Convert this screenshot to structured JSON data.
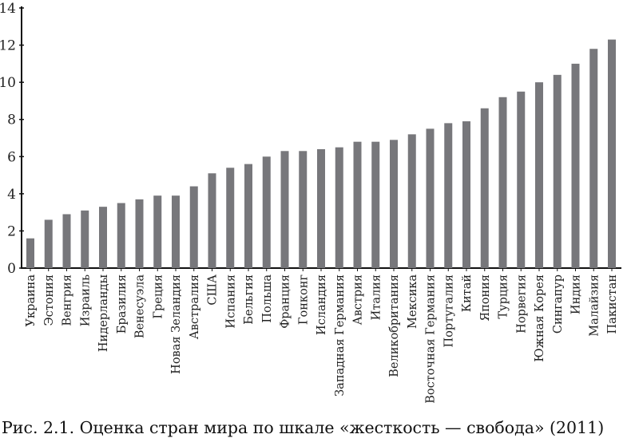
{
  "chart_data": {
    "type": "bar",
    "title": "Рис. 2.1. Оценка стран мира по шкале «жесткость — свобода» (2011)",
    "xlabel": "",
    "ylabel": "",
    "ylim": [
      0,
      14
    ],
    "yticks": [
      0,
      2,
      4,
      6,
      8,
      10,
      12,
      14
    ],
    "grid": false,
    "bar_color": "#77777b",
    "categories": [
      "Украина",
      "Эстония",
      "Венгрия",
      "Израиль",
      "Нидерланды",
      "Бразилия",
      "Венесуэла",
      "Греция",
      "Новая Зеландия",
      "Австралия",
      "США",
      "Испания",
      "Бельгия",
      "Польша",
      "Франция",
      "Гонконг",
      "Исландия",
      "Западная Германия",
      "Австрия",
      "Италия",
      "Великобритания",
      "Мексика",
      "Восточная Германия",
      "Португалия",
      "Китай",
      "Япония",
      "Турция",
      "Норвегия",
      "Южная Корея",
      "Сингапур",
      "Индия",
      "Малайзия",
      "Пакистан"
    ],
    "values": [
      1.6,
      2.6,
      2.9,
      3.1,
      3.3,
      3.5,
      3.7,
      3.9,
      3.9,
      4.4,
      5.1,
      5.4,
      5.6,
      6.0,
      6.3,
      6.3,
      6.4,
      6.5,
      6.8,
      6.8,
      6.9,
      7.2,
      7.5,
      7.8,
      7.9,
      8.6,
      9.2,
      9.5,
      10.0,
      10.4,
      11.0,
      11.8,
      12.3
    ]
  }
}
